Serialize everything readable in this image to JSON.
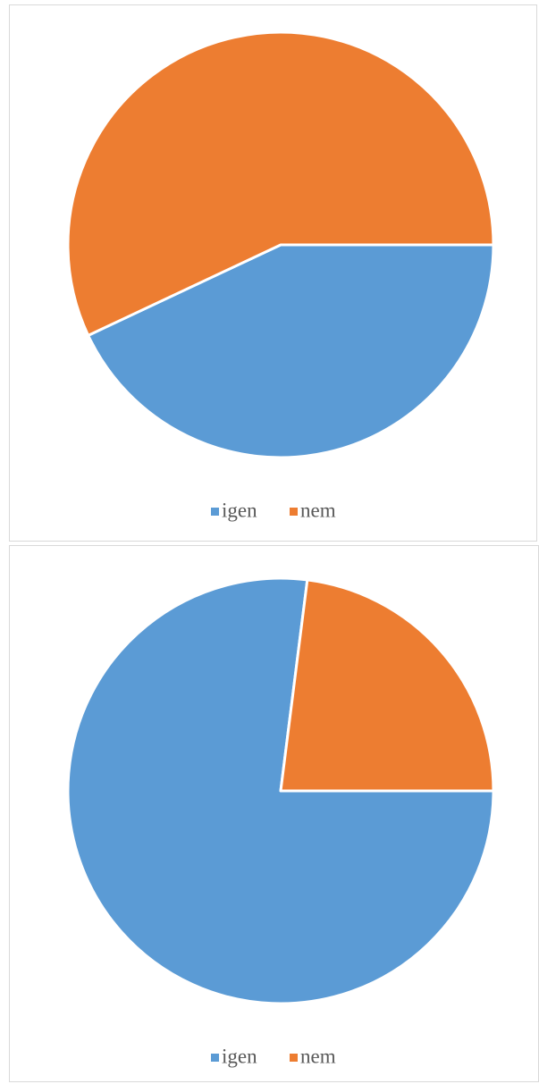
{
  "chart_data": [
    {
      "type": "pie",
      "categories": [
        "igen",
        "nem"
      ],
      "values": [
        43,
        57
      ],
      "colors": [
        "#5b9bd5",
        "#ed7d31"
      ],
      "legend": "bottom"
    },
    {
      "type": "pie",
      "categories": [
        "igen",
        "nem"
      ],
      "values": [
        77,
        23
      ],
      "colors": [
        "#5b9bd5",
        "#ed7d31"
      ],
      "legend": "bottom"
    }
  ]
}
